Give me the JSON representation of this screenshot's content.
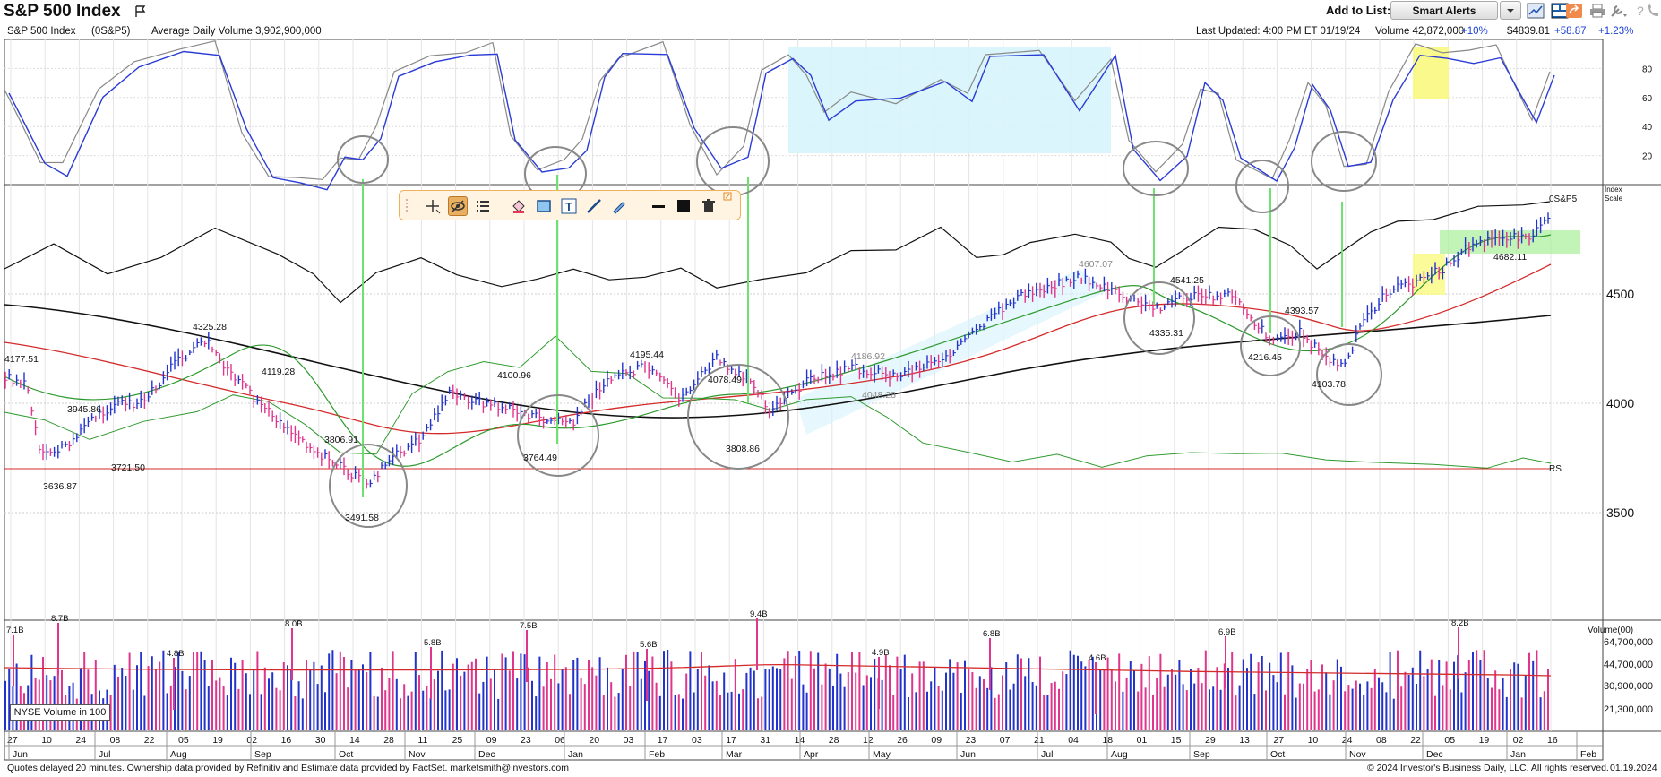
{
  "header": {
    "title": "S&P 500 Index",
    "add_to_list": "Add to List:",
    "smart_alerts": "Smart Alerts",
    "tools": [
      "line-chart-icon",
      "layout-icon",
      "share-icon",
      "print-icon",
      "wrench-icon",
      "help-icon",
      "phone-icon"
    ]
  },
  "infobar": {
    "symbol": "S&P 500 Index",
    "ticker": "(0S&P5)",
    "avg_volume": "Average Daily Volume 3,902,900,000",
    "last_updated": "Last Updated: 4:00 PM ET 01/19/24",
    "volume": "Volume 42,872,000",
    "volume_pct": "+10%",
    "price": "$4839.81",
    "change": "+58.87",
    "change_pct": "+1.23%"
  },
  "drawing_toolbar": {
    "tools": [
      "crosshair-icon",
      "hide-drawings-icon",
      "list-icon",
      "paint-bucket-icon",
      "rectangle-icon",
      "text-icon",
      "line-icon",
      "pencil-icon",
      "line-style-icon",
      "color-swatch-icon",
      "trash-icon"
    ]
  },
  "chart_data": {
    "type": "line",
    "stochastic": {
      "y_ticks": [
        "80",
        "60",
        "40",
        "20"
      ]
    },
    "price": {
      "y_ticks": [
        "4500",
        "4000",
        "3500"
      ],
      "ylim": [
        3000,
        5000
      ],
      "scale_label": "Index Scale",
      "series_label": "0S&P5",
      "rs_label": "RS",
      "annotations": [
        {
          "label": "4177.51",
          "value": 4177.51
        },
        {
          "label": "3945.86",
          "value": 3945.86
        },
        {
          "label": "3636.87",
          "value": 3636.87
        },
        {
          "label": "3721.50",
          "value": 3721.5
        },
        {
          "label": "4325.28",
          "value": 4325.28
        },
        {
          "label": "4119.28",
          "value": 4119.28
        },
        {
          "label": "3806.91",
          "value": 3806.91
        },
        {
          "label": "3491.58",
          "value": 3491.58
        },
        {
          "label": "4100.96",
          "value": 4100.96
        },
        {
          "label": "3764.49",
          "value": 3764.49
        },
        {
          "label": "4195.44",
          "value": 4195.44
        },
        {
          "label": "4078.49",
          "value": 4078.49
        },
        {
          "label": "3808.86",
          "value": 3808.86
        },
        {
          "label": "4186.92",
          "value": 4186.92
        },
        {
          "label": "4048.28",
          "value": 4048.28
        },
        {
          "label": "4607.07",
          "value": 4607.07
        },
        {
          "label": "4541.25",
          "value": 4541.25
        },
        {
          "label": "4335.31",
          "value": 4335.31
        },
        {
          "label": "4393.57",
          "value": 4393.57
        },
        {
          "label": "4216.45",
          "value": 4216.45
        },
        {
          "label": "4103.78",
          "value": 4103.78
        },
        {
          "label": "4682.11",
          "value": 4682.11
        }
      ]
    },
    "volume": {
      "y_label": "Volume(00)",
      "y_ticks": [
        "64,700,000",
        "44,700,000",
        "30,900,000",
        "21,300,000"
      ],
      "legend": "NYSE Volume in 100",
      "annotations": [
        "7.1B",
        "8.7B",
        "4.8B",
        "8.0B",
        "5.8B",
        "7.5B",
        "5.6B",
        "9.4B",
        "4.9B",
        "6.8B",
        "4.6B",
        "6.9B",
        "8.2B"
      ]
    },
    "x_days": [
      "27",
      "10",
      "24",
      "08",
      "22",
      "05",
      "19",
      "02",
      "16",
      "30",
      "14",
      "28",
      "11",
      "25",
      "09",
      "23",
      "06",
      "20",
      "03",
      "17",
      "03",
      "17",
      "31",
      "14",
      "28",
      "12",
      "26",
      "09",
      "23",
      "07",
      "21",
      "04",
      "18",
      "01",
      "15",
      "29",
      "13",
      "27",
      "10",
      "24",
      "08",
      "22",
      "05",
      "19",
      "02",
      "16"
    ],
    "x_months": [
      "Jun",
      "Jul",
      "Aug",
      "Sep",
      "Oct",
      "Nov",
      "Dec",
      "Jan",
      "Feb",
      "Mar",
      "Apr",
      "May",
      "Jun",
      "Jul",
      "Aug",
      "Sep",
      "Oct",
      "Nov",
      "Dec",
      "Jan",
      "Feb"
    ]
  },
  "footer": {
    "left": "Quotes delayed 20 minutes. Ownership data provided by Refinitiv and Estimate data provided by FactSet. marketsmith@investors.com",
    "right": "© 2024 Investor's Business Daily, LLC. All rights reserved.",
    "date": "01.19.2024"
  },
  "colors": {
    "blue_line": "#2a3bd6",
    "green_ma": "#2e9a2e",
    "red_ma": "#d42a2a",
    "pink_bar": "#e0358c",
    "blue_bar": "#2233cc",
    "highlight_cyan": "#d6f4fb",
    "highlight_yellow": "#fafa80",
    "highlight_green": "#a8ee98"
  }
}
